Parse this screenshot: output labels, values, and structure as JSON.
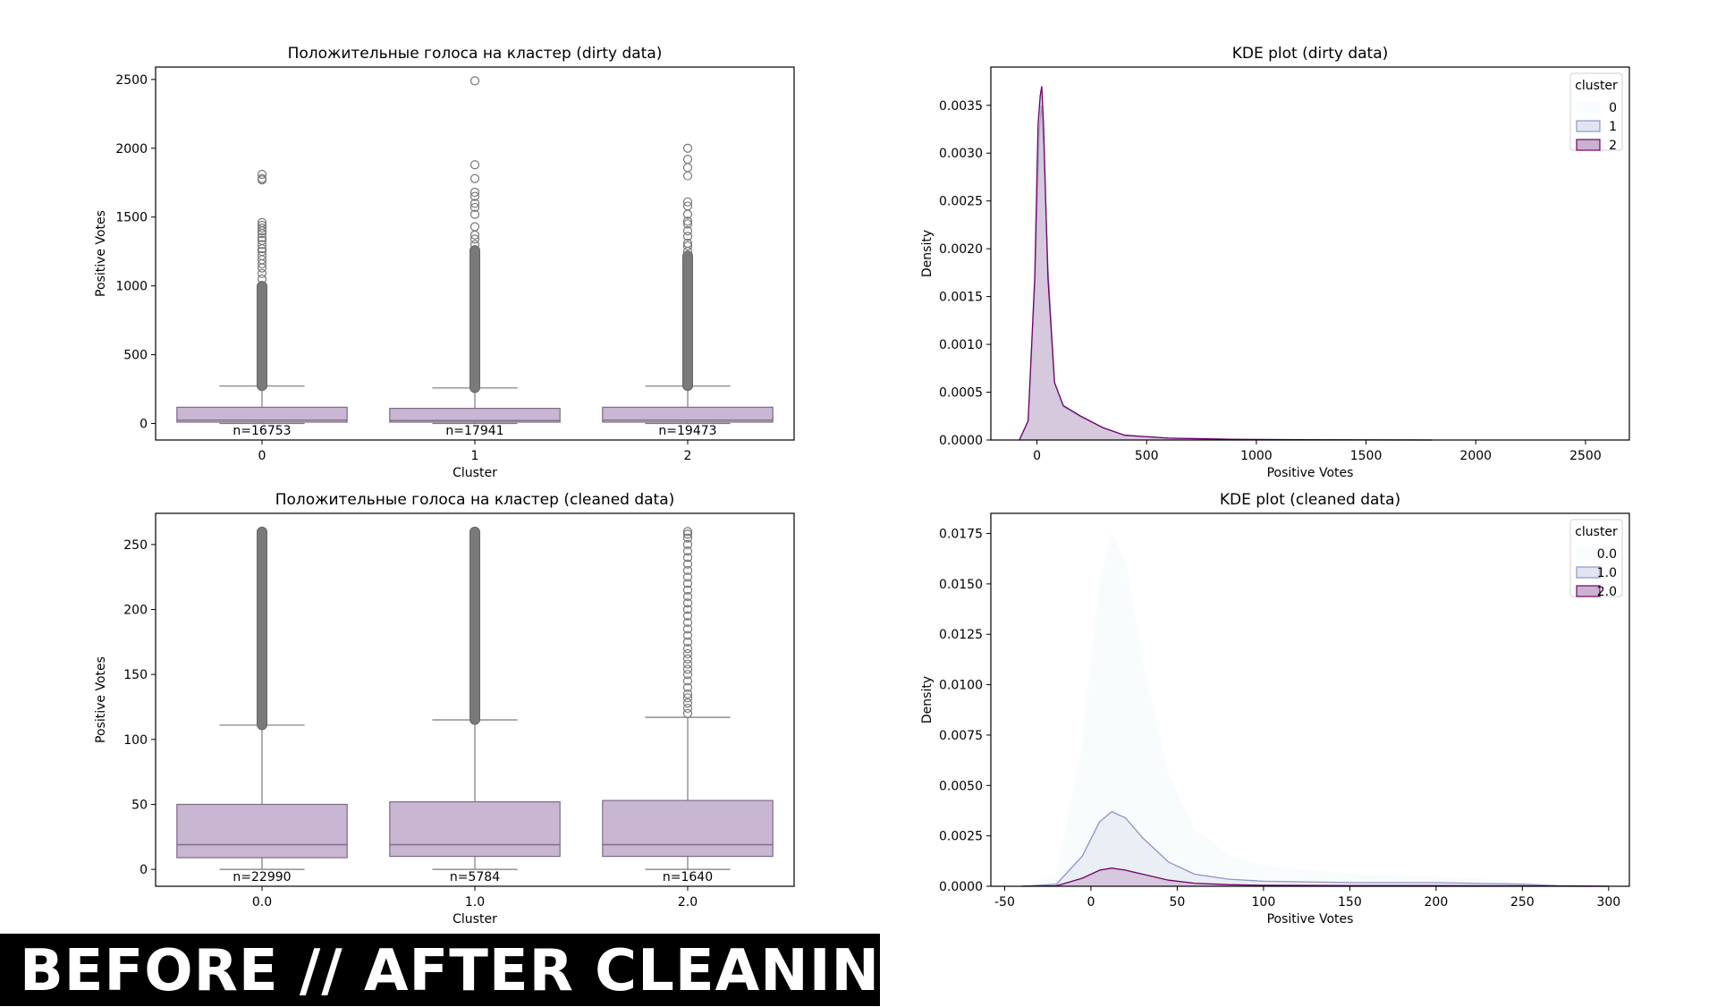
{
  "banner": {
    "text": "BEFORE // AFTER CLEANING"
  },
  "colors": {
    "box_fill": "#c9b6d3",
    "box_edge": "#7d6c85",
    "whisker": "#7a7a7a",
    "outlier_edge": "#777777",
    "kde0": "#f7fcfd",
    "kde1": "#8c96c6",
    "kde2": "#6e016b",
    "kde1_fill": "#dfe1ef",
    "kde2_fill": "#c5a9c9"
  },
  "chart_data": [
    {
      "type": "box",
      "title": "Положительные голоса на кластер (dirty data)",
      "xlabel": "Cluster",
      "ylabel": "Positive Votes",
      "ylim": [
        -120,
        2590
      ],
      "yticks": [
        0,
        500,
        1000,
        1500,
        2000,
        2500
      ],
      "categories": [
        "0",
        "1",
        "2"
      ],
      "boxes": [
        {
          "q1": 10,
          "median": 24,
          "q3": 118,
          "whisker_low": 0,
          "whisker_high": 272,
          "outliers_dense_from": 272,
          "outliers_dense_to": 1000,
          "outliers": [
            1050,
            1090,
            1130,
            1160,
            1190,
            1220,
            1250,
            1270,
            1300,
            1330,
            1350,
            1380,
            1400,
            1420,
            1440,
            1460,
            1770,
            1780,
            1810
          ],
          "n_label": "n=16753"
        },
        {
          "q1": 10,
          "median": 22,
          "q3": 110,
          "whisker_low": 0,
          "whisker_high": 258,
          "outliers_dense_from": 258,
          "outliers_dense_to": 1260,
          "outliers": [
            1300,
            1340,
            1370,
            1430,
            1520,
            1570,
            1600,
            1650,
            1680,
            1780,
            1880,
            2490
          ],
          "n_label": "n=17941"
        },
        {
          "q1": 10,
          "median": 24,
          "q3": 118,
          "whisker_low": 0,
          "whisker_high": 272,
          "outliers_dense_from": 272,
          "outliers_dense_to": 1220,
          "outliers": [
            1250,
            1290,
            1310,
            1360,
            1400,
            1450,
            1470,
            1520,
            1580,
            1610,
            1800,
            1860,
            1920,
            2000
          ],
          "n_label": "n=19473"
        }
      ]
    },
    {
      "type": "kde",
      "title": "KDE plot (dirty data)",
      "xlabel": "Positive Votes",
      "ylabel": "Density",
      "xlim": [
        -210,
        2700
      ],
      "ylim": [
        0,
        0.0039
      ],
      "xticks": [
        0,
        500,
        1000,
        1500,
        2000,
        2500
      ],
      "yticks": [
        "0.0000",
        "0.0005",
        "0.0010",
        "0.0015",
        "0.0020",
        "0.0025",
        "0.0030",
        "0.0035"
      ],
      "legend": {
        "title": "cluster",
        "entries": [
          "0",
          "1",
          "2"
        ],
        "position": "top-right"
      },
      "series": [
        {
          "name": "0",
          "x": [
            -80,
            -40,
            -10,
            10,
            20,
            30,
            50,
            80,
            120,
            200,
            300,
            400,
            600,
            900,
            1300,
            1800
          ],
          "y": [
            0,
            0.0002,
            0.0015,
            0.003,
            0.0033,
            0.003,
            0.0017,
            0.0006,
            0.00035,
            0.00022,
            0.00012,
            5e-05,
            2e-05,
            7e-06,
            2e-06,
            0
          ]
        },
        {
          "name": "1",
          "x": [
            -80,
            -40,
            -10,
            10,
            20,
            30,
            50,
            80,
            120,
            200,
            300,
            400,
            600,
            900,
            1300,
            1800
          ],
          "y": [
            0,
            0.0002,
            0.0016,
            0.0032,
            0.0035,
            0.0031,
            0.0018,
            0.0006,
            0.00035,
            0.00024,
            0.00013,
            5e-05,
            2e-05,
            7e-06,
            2e-06,
            0
          ]
        },
        {
          "name": "2",
          "x": [
            -80,
            -40,
            -10,
            5,
            15,
            22,
            30,
            50,
            80,
            120,
            200,
            300,
            400,
            600,
            900,
            1300,
            1800
          ],
          "y": [
            0,
            0.0002,
            0.0017,
            0.0033,
            0.0036,
            0.0037,
            0.0033,
            0.0017,
            0.0006,
            0.00036,
            0.00025,
            0.00013,
            5e-05,
            2e-05,
            7e-06,
            2e-06,
            0
          ]
        }
      ]
    },
    {
      "type": "box",
      "title": "Положительные голоса на кластер (cleaned data)",
      "xlabel": "Cluster",
      "ylabel": "Positive Votes",
      "ylim": [
        -13,
        274
      ],
      "yticks": [
        0,
        50,
        100,
        150,
        200,
        250
      ],
      "categories": [
        "0.0",
        "1.0",
        "2.0"
      ],
      "boxes": [
        {
          "q1": 9,
          "median": 19,
          "q3": 50,
          "whisker_low": 0,
          "whisker_high": 111,
          "outliers_dense_from": 111,
          "outliers_dense_to": 260,
          "outliers": [],
          "n_label": "n=22990"
        },
        {
          "q1": 10,
          "median": 19,
          "q3": 52,
          "whisker_low": 0,
          "whisker_high": 115,
          "outliers_dense_from": 115,
          "outliers_dense_to": 260,
          "outliers": [],
          "n_label": "n=5784"
        },
        {
          "q1": 10,
          "median": 19,
          "q3": 53,
          "whisker_low": 0,
          "whisker_high": 117,
          "outliers_dense_from": null,
          "outliers_dense_to": null,
          "outliers": [
            120,
            124,
            128,
            132,
            135,
            140,
            145,
            150,
            154,
            158,
            162,
            166,
            170,
            175,
            180,
            185,
            190,
            195,
            200,
            205,
            210,
            215,
            220,
            225,
            230,
            235,
            240,
            245,
            250,
            255,
            258,
            260
          ],
          "n_label": "n=1640"
        }
      ]
    },
    {
      "type": "kde",
      "title": "KDE plot (cleaned data)",
      "xlabel": "Positive Votes",
      "ylabel": "Density",
      "xlim": [
        -58,
        312
      ],
      "ylim": [
        0,
        0.0185
      ],
      "xticks": [
        -50,
        0,
        50,
        100,
        150,
        200,
        250,
        300
      ],
      "yticks": [
        "0.0000",
        "0.0025",
        "0.0050",
        "0.0075",
        "0.0100",
        "0.0125",
        "0.0150",
        "0.0175"
      ],
      "legend": {
        "title": "cluster",
        "entries": [
          "0.0",
          "1.0",
          "2.0"
        ],
        "position": "top-right"
      },
      "series": [
        {
          "name": "0.0",
          "x": [
            -40,
            -20,
            -5,
            5,
            12,
            20,
            30,
            45,
            60,
            80,
            100,
            150,
            200,
            250,
            270,
            300
          ],
          "y": [
            0,
            0.0005,
            0.007,
            0.015,
            0.0175,
            0.016,
            0.011,
            0.0055,
            0.0028,
            0.0015,
            0.001,
            0.0006,
            0.00045,
            0.0002,
            5e-05,
            0
          ]
        },
        {
          "name": "1.0",
          "x": [
            -40,
            -20,
            -5,
            5,
            12,
            20,
            30,
            45,
            60,
            80,
            100,
            150,
            200,
            250,
            270,
            300
          ],
          "y": [
            0,
            0.0001,
            0.0015,
            0.0032,
            0.0037,
            0.0034,
            0.0024,
            0.0012,
            0.0006,
            0.00035,
            0.00025,
            0.00018,
            0.00018,
            0.0001,
            3e-05,
            0
          ]
        },
        {
          "name": "2.0",
          "x": [
            -40,
            -20,
            -5,
            5,
            12,
            20,
            30,
            45,
            60,
            80,
            100,
            150,
            200,
            250,
            270,
            300
          ],
          "y": [
            0,
            2e-05,
            0.0004,
            0.0008,
            0.0009,
            0.0008,
            0.0006,
            0.0003,
            0.00015,
            8e-05,
            5e-05,
            3e-05,
            3e-05,
            2e-05,
            1e-05,
            0
          ]
        }
      ]
    }
  ]
}
